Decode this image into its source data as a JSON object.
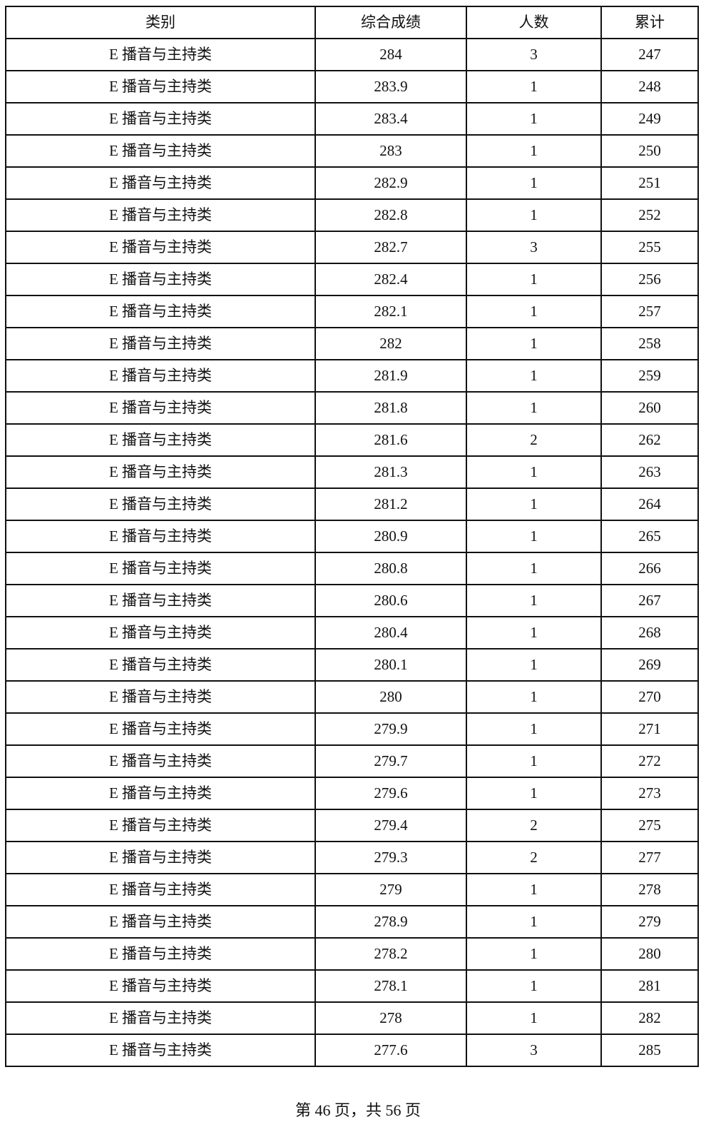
{
  "table": {
    "headers": [
      "类别",
      "综合成绩",
      "人数",
      "累计"
    ],
    "rows": [
      [
        "E 播音与主持类",
        "284",
        "3",
        "247"
      ],
      [
        "E 播音与主持类",
        "283.9",
        "1",
        "248"
      ],
      [
        "E 播音与主持类",
        "283.4",
        "1",
        "249"
      ],
      [
        "E 播音与主持类",
        "283",
        "1",
        "250"
      ],
      [
        "E 播音与主持类",
        "282.9",
        "1",
        "251"
      ],
      [
        "E 播音与主持类",
        "282.8",
        "1",
        "252"
      ],
      [
        "E 播音与主持类",
        "282.7",
        "3",
        "255"
      ],
      [
        "E 播音与主持类",
        "282.4",
        "1",
        "256"
      ],
      [
        "E 播音与主持类",
        "282.1",
        "1",
        "257"
      ],
      [
        "E 播音与主持类",
        "282",
        "1",
        "258"
      ],
      [
        "E 播音与主持类",
        "281.9",
        "1",
        "259"
      ],
      [
        "E 播音与主持类",
        "281.8",
        "1",
        "260"
      ],
      [
        "E 播音与主持类",
        "281.6",
        "2",
        "262"
      ],
      [
        "E 播音与主持类",
        "281.3",
        "1",
        "263"
      ],
      [
        "E 播音与主持类",
        "281.2",
        "1",
        "264"
      ],
      [
        "E 播音与主持类",
        "280.9",
        "1",
        "265"
      ],
      [
        "E 播音与主持类",
        "280.8",
        "1",
        "266"
      ],
      [
        "E 播音与主持类",
        "280.6",
        "1",
        "267"
      ],
      [
        "E 播音与主持类",
        "280.4",
        "1",
        "268"
      ],
      [
        "E 播音与主持类",
        "280.1",
        "1",
        "269"
      ],
      [
        "E 播音与主持类",
        "280",
        "1",
        "270"
      ],
      [
        "E 播音与主持类",
        "279.9",
        "1",
        "271"
      ],
      [
        "E 播音与主持类",
        "279.7",
        "1",
        "272"
      ],
      [
        "E 播音与主持类",
        "279.6",
        "1",
        "273"
      ],
      [
        "E 播音与主持类",
        "279.4",
        "2",
        "275"
      ],
      [
        "E 播音与主持类",
        "279.3",
        "2",
        "277"
      ],
      [
        "E 播音与主持类",
        "279",
        "1",
        "278"
      ],
      [
        "E 播音与主持类",
        "278.9",
        "1",
        "279"
      ],
      [
        "E 播音与主持类",
        "278.2",
        "1",
        "280"
      ],
      [
        "E 播音与主持类",
        "278.1",
        "1",
        "281"
      ],
      [
        "E 播音与主持类",
        "278",
        "1",
        "282"
      ],
      [
        "E 播音与主持类",
        "277.6",
        "3",
        "285"
      ]
    ]
  },
  "footer": {
    "page_label": "第 46 页，共 56 页"
  }
}
